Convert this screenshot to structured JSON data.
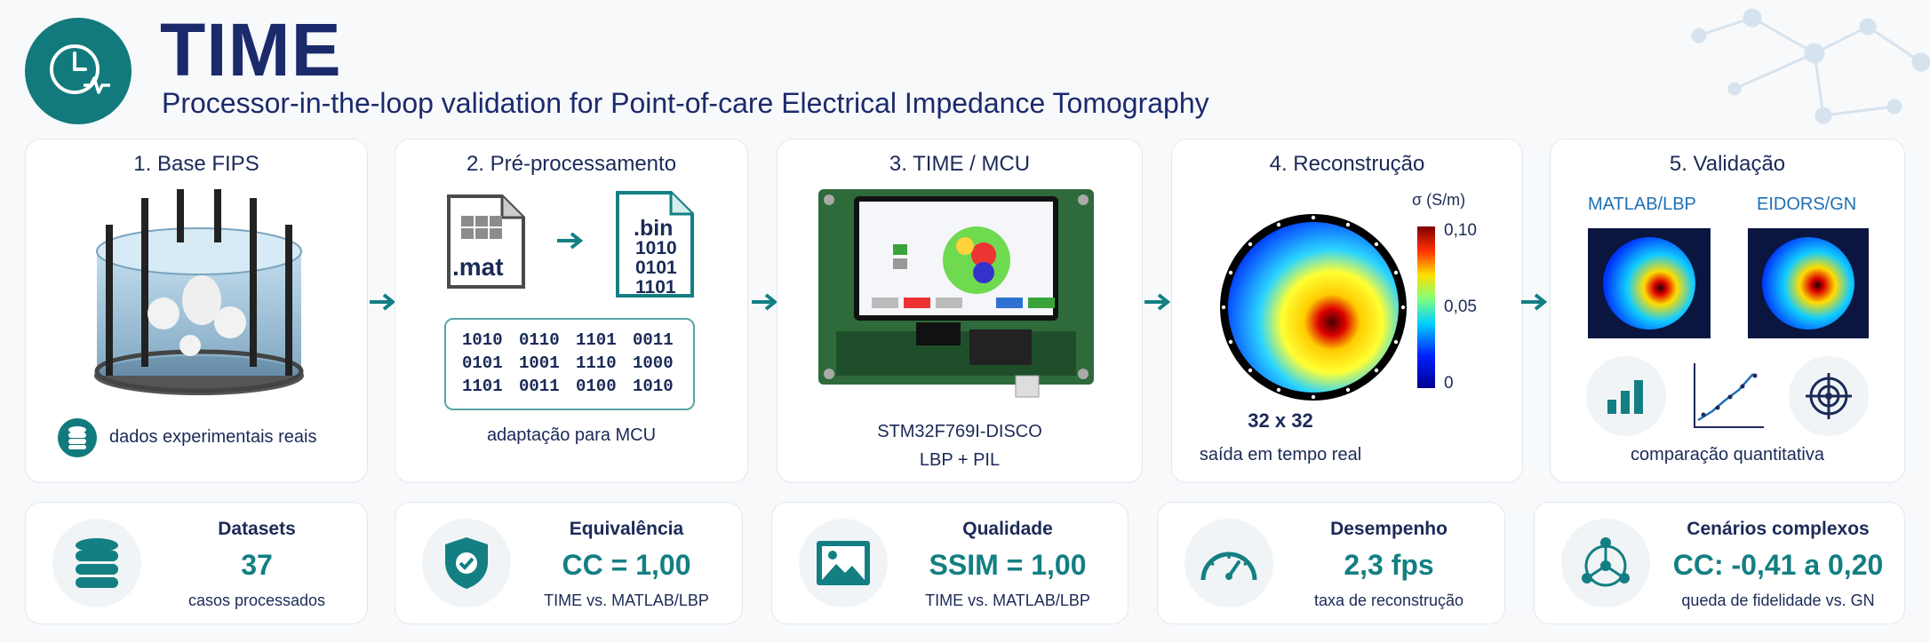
{
  "header": {
    "title": "TIME",
    "subtitle": "Processor-in-the-loop validation for Point-of-care Electrical Impedance Tomography"
  },
  "colors": {
    "teal": "#127a7c",
    "navy": "#1b2a6b",
    "accent_blue": "#1f6fb4"
  },
  "steps": [
    {
      "title": "1. Base FIPS",
      "caption": "dados experimentais reais",
      "icon": "tank-phantom-icon"
    },
    {
      "title": "2. Pré-processamento",
      "caption": "adaptação para MCU",
      "file_in": ".mat",
      "file_out_ext": ".bin",
      "file_out_bits": [
        "1010",
        "0101",
        "1101"
      ],
      "bin_grid": [
        "1010",
        "0110",
        "1101",
        "0011",
        "0101",
        "1001",
        "1110",
        "1000",
        "1101",
        "0011",
        "0100",
        "1010"
      ]
    },
    {
      "title": "3. TIME / MCU",
      "caption_line1": "STM32F769I-DISCO",
      "caption_line2": "LBP + PIL"
    },
    {
      "title": "4. Reconstrução",
      "caption_line1": "32 x 32",
      "caption_line2": "saída em tempo real",
      "colorbar_title": "σ (S/m)",
      "colorbar_ticks": [
        "0,10",
        "0,05",
        "0"
      ]
    },
    {
      "title": "5. Validação",
      "label_left": "MATLAB/LBP",
      "label_right": "EIDORS/GN",
      "caption": "comparação quantitativa"
    }
  ],
  "stats": [
    {
      "label": "Datasets",
      "value": "37",
      "desc": "casos processados",
      "icon": "database-icon"
    },
    {
      "label": "Equivalência",
      "value": "CC = 1,00",
      "desc": "TIME vs. MATLAB/LBP",
      "icon": "shield-check-icon"
    },
    {
      "label": "Qualidade",
      "value": "SSIM = 1,00",
      "desc": "TIME vs. MATLAB/LBP",
      "icon": "image-icon"
    },
    {
      "label": "Desempenho",
      "value": "2,3 fps",
      "desc": "taxa de reconstrução",
      "icon": "gauge-icon"
    },
    {
      "label": "Cenários complexos",
      "value": "CC: -0,41 a 0,20",
      "desc": "queda de fidelidade vs. GN",
      "icon": "network-icon"
    }
  ]
}
